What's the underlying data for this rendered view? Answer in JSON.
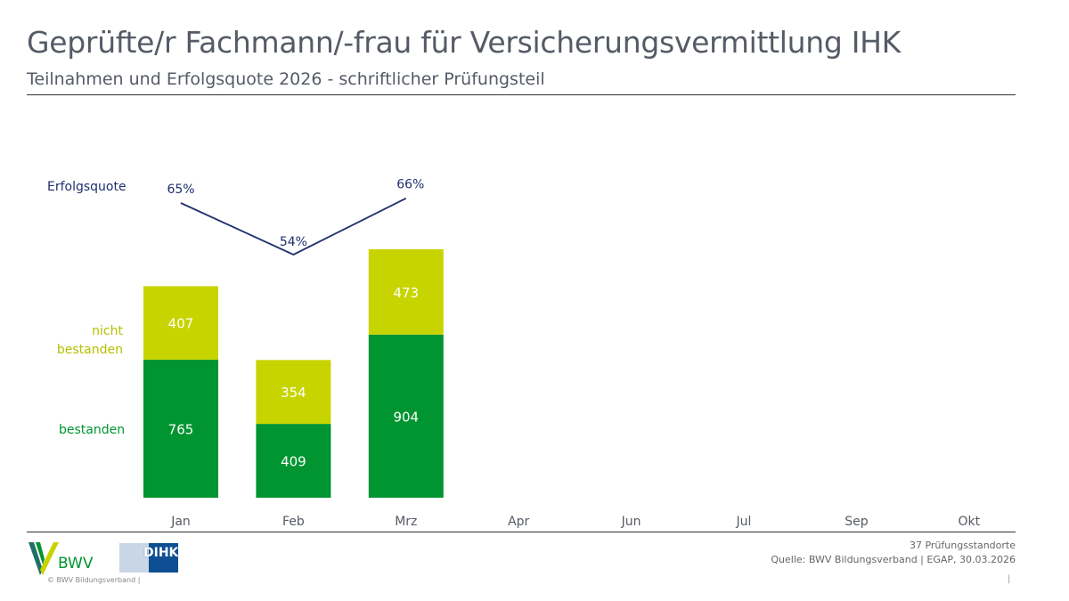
{
  "header": {
    "title": "Geprüfte/r Fachmann/-frau für Versicherungsvermittlung IHK",
    "subtitle": "Teilnahmen und Erfolgsquote 2026 - schriftlicher Prüfungsteil"
  },
  "chart_data": {
    "type": "bar",
    "stacked": true,
    "categories": [
      "Jan",
      "Feb",
      "Mrz",
      "Apr",
      "Jun",
      "Jul",
      "Sep",
      "Okt"
    ],
    "series": [
      {
        "name": "bestanden",
        "values": [
          765,
          409,
          904,
          null,
          null,
          null,
          null,
          null
        ],
        "color": "#009530"
      },
      {
        "name": "nicht bestanden",
        "values": [
          407,
          354,
          473,
          null,
          null,
          null,
          null,
          null
        ],
        "color": "#c8d400"
      }
    ],
    "line": {
      "name": "Erfolgsquote",
      "values": [
        65,
        54,
        66
      ],
      "labels": [
        "65%",
        "54%",
        "66%"
      ],
      "color": "#1f2f6e"
    },
    "legend_labels": {
      "bestanden": "bestanden",
      "nicht_bestanden_1": "nicht",
      "nicht_bestanden_2": "bestanden",
      "line": "Erfolgsquote"
    }
  },
  "footer": {
    "standorte": "37 Prüfungsstandorte",
    "quelle": "Quelle: BWV Bildungsverband | EGAP, 30.03.2026",
    "copyright": "© BWV Bildungsverband |",
    "bwv_logo": "BWV",
    "dihk_logo": "DIHK",
    "page_marker": "|"
  }
}
